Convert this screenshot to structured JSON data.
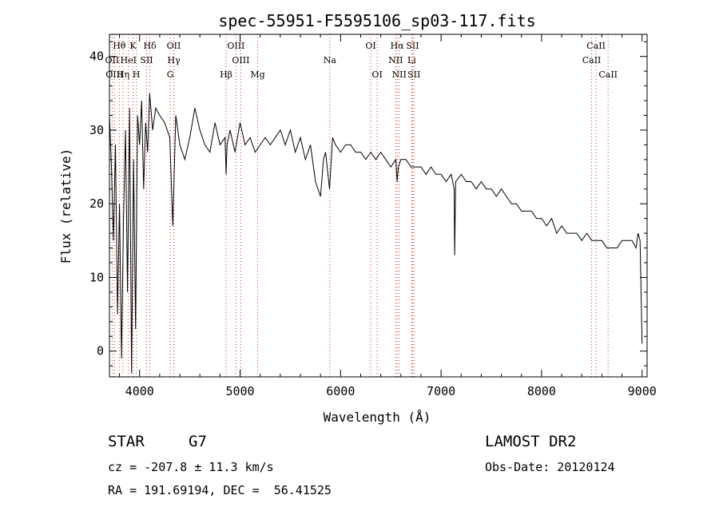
{
  "chart_data": {
    "type": "line",
    "title": "spec-55951-F5595106_sp03-117.fits",
    "xlabel": "Wavelength (Å)",
    "ylabel": "Flux (relative)",
    "xlim": [
      3700,
      9050
    ],
    "ylim": [
      -3.5,
      43
    ],
    "x_ticks": [
      4000,
      5000,
      6000,
      7000,
      8000,
      9000
    ],
    "y_ticks": [
      0,
      10,
      20,
      30,
      40
    ],
    "grid": false,
    "legend": "none",
    "series": [
      {
        "x": [
          3700,
          3720,
          3740,
          3760,
          3780,
          3800,
          3820,
          3840,
          3860,
          3880,
          3900,
          3920,
          3940,
          3960,
          3980,
          4000,
          4020,
          4040,
          4060,
          4080,
          4100,
          4130,
          4160,
          4200,
          4250,
          4300,
          4330,
          4360,
          4400,
          4450,
          4500,
          4550,
          4600,
          4650,
          4700,
          4750,
          4800,
          4850,
          4861,
          4870,
          4900,
          4950,
          5000,
          5050,
          5100,
          5150,
          5200,
          5250,
          5300,
          5350,
          5400,
          5450,
          5500,
          5550,
          5600,
          5650,
          5700,
          5750,
          5800,
          5830,
          5850,
          5890,
          5920,
          5950,
          6000,
          6050,
          6100,
          6150,
          6200,
          6250,
          6300,
          6350,
          6400,
          6450,
          6500,
          6550,
          6563,
          6575,
          6600,
          6650,
          6700,
          6750,
          6800,
          6850,
          6900,
          6950,
          7000,
          7050,
          7100,
          7130,
          7135,
          7145,
          7200,
          7250,
          7300,
          7350,
          7400,
          7450,
          7500,
          7550,
          7600,
          7650,
          7700,
          7750,
          7800,
          7850,
          7900,
          7950,
          8000,
          8050,
          8100,
          8150,
          8200,
          8250,
          8300,
          8350,
          8400,
          8450,
          8500,
          8550,
          8600,
          8650,
          8700,
          8750,
          8800,
          8850,
          8900,
          8940,
          8960,
          8980,
          9000
        ],
        "y": [
          32,
          25,
          15,
          28,
          5,
          20,
          -1,
          18,
          30,
          8,
          33,
          -3,
          26,
          3,
          32,
          28,
          34,
          22,
          31,
          27,
          35,
          30,
          33,
          32,
          31,
          29,
          17,
          32,
          28,
          26,
          29,
          33,
          30,
          28,
          27,
          31,
          28,
          29,
          24,
          28,
          30,
          27,
          31,
          28,
          29,
          27,
          28,
          29,
          28,
          29,
          30,
          28,
          30,
          27,
          29,
          26,
          28,
          23,
          21,
          26,
          27,
          22,
          29,
          28,
          27,
          28,
          28,
          27,
          27,
          26,
          27,
          26,
          27,
          26,
          25,
          26,
          23,
          25,
          26,
          26,
          25,
          25,
          25,
          24,
          25,
          24,
          24,
          23,
          24,
          22,
          13,
          23,
          24,
          23,
          23,
          22,
          23,
          22,
          22,
          21,
          22,
          21,
          20,
          20,
          19,
          19,
          19,
          18,
          18,
          17,
          18,
          16,
          17,
          16,
          16,
          16,
          15,
          16,
          15,
          15,
          15,
          14,
          14,
          14,
          15,
          15,
          15,
          14,
          16,
          15,
          1
        ]
      }
    ],
    "line_markers": [
      {
        "name": "Hθ",
        "x": 3798,
        "row": 1
      },
      {
        "name": "K",
        "x": 3934,
        "row": 1
      },
      {
        "name": "Hδ",
        "x": 4102,
        "row": 1
      },
      {
        "name": "OII",
        "x": 4340,
        "row": 1
      },
      {
        "name": "OIII",
        "x": 4959,
        "row": 1
      },
      {
        "name": "OI",
        "x": 6300,
        "row": 1
      },
      {
        "name": "Hα",
        "x": 6563,
        "row": 1
      },
      {
        "name": "SII",
        "x": 6717,
        "row": 1
      },
      {
        "name": "CaII",
        "x": 8542,
        "row": 1
      },
      {
        "name": "OII",
        "x": 3727,
        "row": 2
      },
      {
        "name": "HeI",
        "x": 3889,
        "row": 2
      },
      {
        "name": "SII",
        "x": 4070,
        "row": 2
      },
      {
        "name": "Hγ",
        "x": 4341,
        "row": 2
      },
      {
        "name": "OIII",
        "x": 5007,
        "row": 2
      },
      {
        "name": "Na",
        "x": 5893,
        "row": 2
      },
      {
        "name": "NII",
        "x": 6548,
        "row": 2
      },
      {
        "name": "Li",
        "x": 6708,
        "row": 2
      },
      {
        "name": "CaII",
        "x": 8498,
        "row": 2
      },
      {
        "name": "OIII",
        "x": 3750,
        "row": 3
      },
      {
        "name": "Hη",
        "x": 3835,
        "row": 3
      },
      {
        "name": "H",
        "x": 3968,
        "row": 3
      },
      {
        "name": "G",
        "x": 4305,
        "row": 3
      },
      {
        "name": "Hβ",
        "x": 4861,
        "row": 3
      },
      {
        "name": "Mg",
        "x": 5175,
        "row": 3
      },
      {
        "name": "OI",
        "x": 6364,
        "row": 3
      },
      {
        "name": "NII",
        "x": 6583,
        "row": 3
      },
      {
        "name": "SII",
        "x": 6731,
        "row": 3
      },
      {
        "name": "CaII",
        "x": 8662,
        "row": 3
      }
    ],
    "marker_color": "#c0392b"
  },
  "footer": {
    "object_type": "STAR",
    "subclass": "G7",
    "cz_text": "cz = -207.8 ± 11.3 km/s",
    "coords_text": "RA = 191.69194, DEC =  56.41525",
    "survey": "LAMOST DR2",
    "obs_date_text": "Obs-Date: 20120124"
  }
}
